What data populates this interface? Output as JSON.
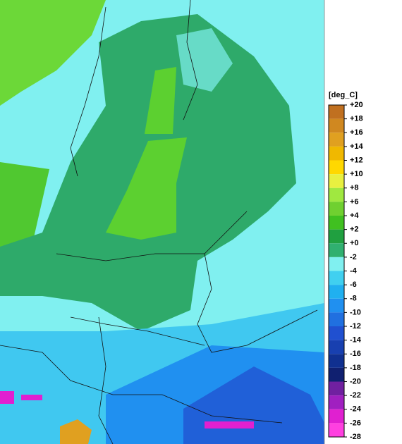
{
  "legend": {
    "unit": "[deg_C]",
    "ticks": [
      {
        "value": 20,
        "label": "+20"
      },
      {
        "value": 18,
        "label": "+18"
      },
      {
        "value": 16,
        "label": "+16"
      },
      {
        "value": 14,
        "label": "+14"
      },
      {
        "value": 12,
        "label": "+12"
      },
      {
        "value": 10,
        "label": "+10"
      },
      {
        "value": 8,
        "label": "+8"
      },
      {
        "value": 6,
        "label": "+6"
      },
      {
        "value": 4,
        "label": "+4"
      },
      {
        "value": 2,
        "label": "+2"
      },
      {
        "value": 0,
        "label": "+0"
      },
      -2,
      -4,
      -6,
      -8,
      -10,
      -12,
      -14,
      -16,
      -18,
      -20,
      -22,
      -24,
      -26,
      -28
    ],
    "colors": [
      "#c07020",
      "#d08820",
      "#e0a020",
      "#f0b800",
      "#ffd800",
      "#e8f040",
      "#a0e840",
      "#70d030",
      "#40c020",
      "#20a040",
      "#30b070",
      "#80f0f0",
      "#40d0f0",
      "#20b0f0",
      "#2090f0",
      "#2070e0",
      "#2050d0",
      "#1840b0",
      "#103090",
      "#102070",
      "#7020a0",
      "#a020c0",
      "#e020d0",
      "#ff40e0"
    ]
  }
}
